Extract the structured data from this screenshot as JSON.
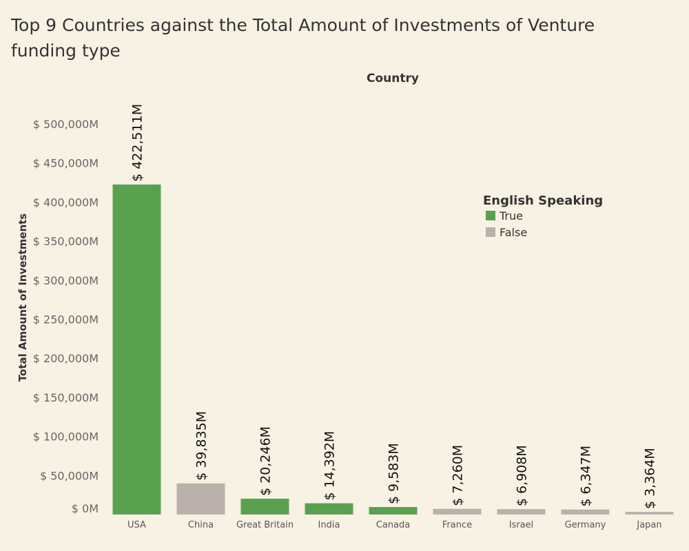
{
  "chart_data": {
    "type": "bar",
    "title": "Top 9 Countries against the Total Amount of Investments of Venture funding type",
    "column_header": "Country",
    "xlabel": "",
    "ylabel": "Total Amount of Investments",
    "ylim": [
      0,
      500000
    ],
    "yticks": [
      0,
      50000,
      100000,
      150000,
      200000,
      250000,
      300000,
      350000,
      400000,
      450000,
      500000
    ],
    "ytick_labels": [
      "$ 0M",
      "$ 50,000M",
      "$ 100,000M",
      "$ 150,000M",
      "$ 200,000M",
      "$ 250,000M",
      "$ 300,000M",
      "$ 350,000M",
      "$ 400,000M",
      "$ 450,000M",
      "$ 500,000M"
    ],
    "categories": [
      "USA",
      "China",
      "Great Britain",
      "India",
      "Canada",
      "France",
      "Israel",
      "Germany",
      "Japan"
    ],
    "values": [
      422511,
      39835,
      20246,
      14392,
      9583,
      7260,
      6908,
      6347,
      3364
    ],
    "value_labels": [
      "$ 422,511M",
      "$ 39,835M",
      "$ 20,246M",
      "$ 14,392M",
      "$ 9,583M",
      "$ 7,260M",
      "$ 6,908M",
      "$ 6,347M",
      "$ 3,364M"
    ],
    "english_speaking": [
      true,
      false,
      true,
      true,
      true,
      false,
      false,
      false,
      false
    ],
    "legend": {
      "title": "English Speaking",
      "position": "top-right",
      "items": [
        {
          "label": "True",
          "color": "#59a14f"
        },
        {
          "label": "False",
          "color": "#bab0ac"
        }
      ]
    },
    "grid": false
  }
}
